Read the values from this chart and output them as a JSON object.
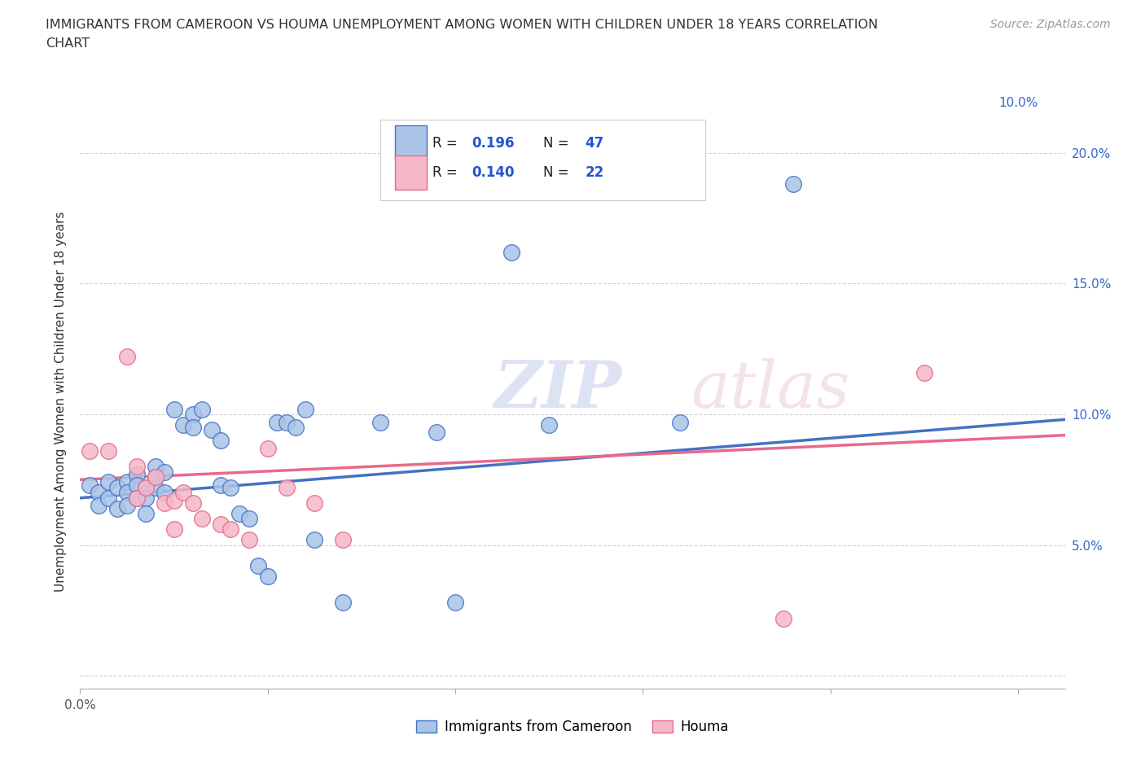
{
  "title_line1": "IMMIGRANTS FROM CAMEROON VS HOUMA UNEMPLOYMENT AMONG WOMEN WITH CHILDREN UNDER 18 YEARS CORRELATION",
  "title_line2": "CHART",
  "source_text": "Source: ZipAtlas.com",
  "ylabel": "Unemployment Among Women with Children Under 18 years",
  "xlim": [
    0.0,
    0.105
  ],
  "ylim": [
    -0.005,
    0.215
  ],
  "color_blue": "#aac4e8",
  "color_pink": "#f4b8c8",
  "line_blue": "#4472c4",
  "line_pink": "#e8698a",
  "watermark_zip": "ZIP",
  "watermark_atlas": "atlas",
  "legend_label1": "Immigrants from Cameroon",
  "legend_label2": "Houma",
  "blue_scatter_x": [
    0.001,
    0.002,
    0.002,
    0.003,
    0.003,
    0.004,
    0.004,
    0.005,
    0.005,
    0.005,
    0.006,
    0.006,
    0.006,
    0.007,
    0.007,
    0.007,
    0.008,
    0.008,
    0.008,
    0.009,
    0.009,
    0.01,
    0.011,
    0.012,
    0.012,
    0.013,
    0.014,
    0.015,
    0.015,
    0.016,
    0.017,
    0.018,
    0.019,
    0.02,
    0.021,
    0.022,
    0.023,
    0.024,
    0.025,
    0.028,
    0.032,
    0.038,
    0.04,
    0.046,
    0.05,
    0.064,
    0.076
  ],
  "blue_scatter_y": [
    0.073,
    0.07,
    0.065,
    0.074,
    0.068,
    0.072,
    0.064,
    0.074,
    0.07,
    0.065,
    0.077,
    0.073,
    0.068,
    0.072,
    0.068,
    0.062,
    0.08,
    0.076,
    0.072,
    0.078,
    0.07,
    0.102,
    0.096,
    0.1,
    0.095,
    0.102,
    0.094,
    0.09,
    0.073,
    0.072,
    0.062,
    0.06,
    0.042,
    0.038,
    0.097,
    0.097,
    0.095,
    0.102,
    0.052,
    0.028,
    0.097,
    0.093,
    0.028,
    0.162,
    0.096,
    0.097,
    0.188
  ],
  "pink_scatter_x": [
    0.001,
    0.003,
    0.005,
    0.006,
    0.006,
    0.007,
    0.008,
    0.009,
    0.01,
    0.01,
    0.011,
    0.012,
    0.013,
    0.015,
    0.016,
    0.018,
    0.02,
    0.022,
    0.025,
    0.028,
    0.075,
    0.09
  ],
  "pink_scatter_y": [
    0.086,
    0.086,
    0.122,
    0.08,
    0.068,
    0.072,
    0.076,
    0.066,
    0.067,
    0.056,
    0.07,
    0.066,
    0.06,
    0.058,
    0.056,
    0.052,
    0.087,
    0.072,
    0.066,
    0.052,
    0.022,
    0.116
  ],
  "blue_trend_x": [
    0.0,
    0.105
  ],
  "blue_trend_y": [
    0.068,
    0.098
  ],
  "pink_trend_x": [
    0.0,
    0.105
  ],
  "pink_trend_y": [
    0.075,
    0.092
  ]
}
